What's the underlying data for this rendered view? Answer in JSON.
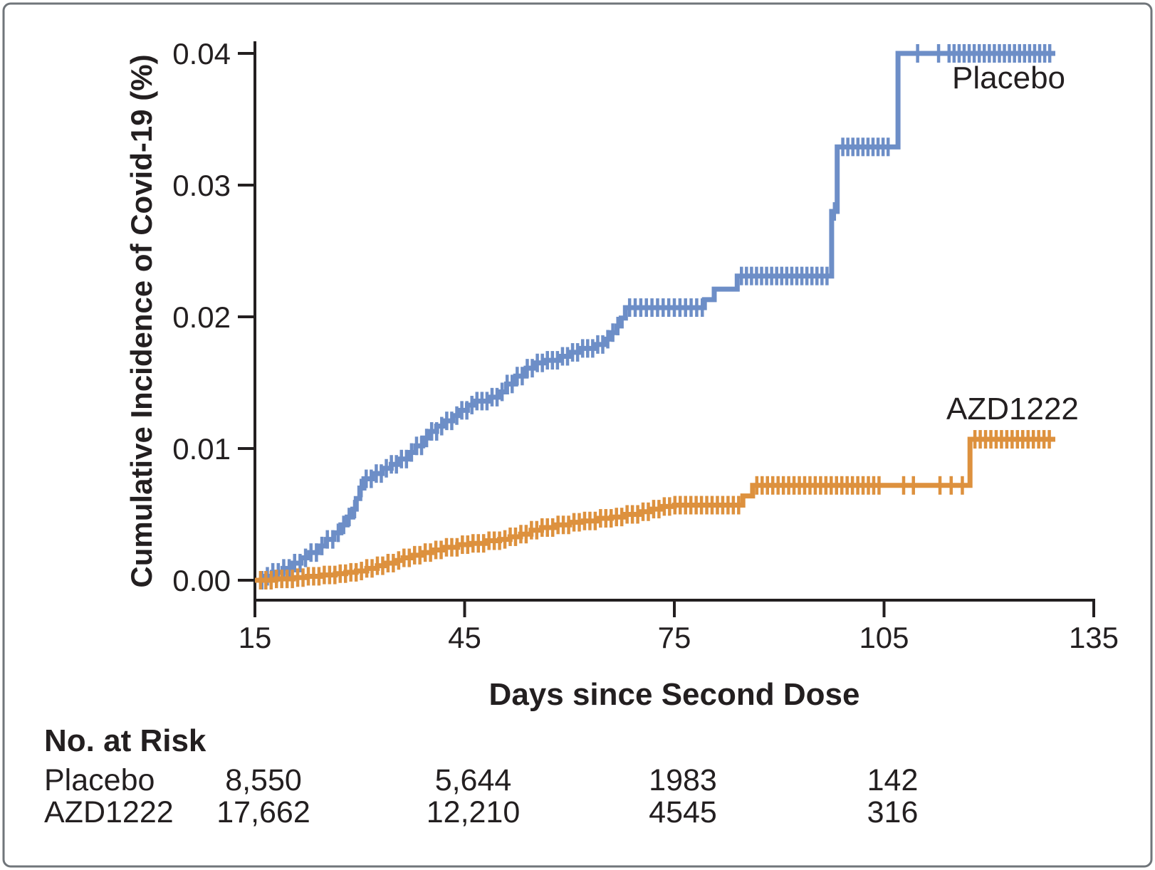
{
  "figure": {
    "background": "#ffffff",
    "border_color": "#70757a",
    "text_color": "#231f20",
    "axis_color": "#231f20"
  },
  "risk_table": {
    "title": "No. at Risk",
    "column_days": [
      15,
      45,
      75,
      105
    ],
    "rows": [
      {
        "label": "Placebo",
        "values": [
          "8,550",
          "5,644",
          "1983",
          "142"
        ]
      },
      {
        "label": "AZD1222",
        "values": [
          "17,662",
          "12,210",
          "4545",
          "316"
        ]
      }
    ]
  },
  "chart_data": {
    "type": "line",
    "subtype": "kaplan-meier-step",
    "title": "",
    "xlabel": "Days since Second Dose",
    "ylabel": "Cumulative Incidence of Covid-19 (%)",
    "grid": false,
    "x_axis": {
      "min": 15,
      "max": 135,
      "ticks": [
        15,
        45,
        75,
        105,
        135
      ],
      "tick_labels": [
        "15",
        "45",
        "75",
        "105",
        "135"
      ]
    },
    "y_axis": {
      "min": 0,
      "max": 0.04,
      "ticks": [
        0,
        0.01,
        0.02,
        0.03,
        0.04
      ],
      "tick_labels": [
        "0.00",
        "0.01",
        "0.02",
        "0.03",
        "0.04"
      ]
    },
    "legend_position": "on-curve-labels",
    "series": [
      {
        "name": "Placebo",
        "color": "#6d8ec7",
        "end_day": 129.5,
        "points": [
          [
            15,
            0
          ],
          [
            16.3,
            0.0003
          ],
          [
            17.5,
            0.0006
          ],
          [
            19,
            0.0009
          ],
          [
            20.3,
            0.0013
          ],
          [
            21.6,
            0.0017
          ],
          [
            22.8,
            0.0021
          ],
          [
            24,
            0.0026
          ],
          [
            25.2,
            0.0031
          ],
          [
            26.3,
            0.0036
          ],
          [
            27.3,
            0.0042
          ],
          [
            28.2,
            0.0048
          ],
          [
            29,
            0.0054
          ],
          [
            29.5,
            0.0062
          ],
          [
            30,
            0.007
          ],
          [
            30.6,
            0.0077
          ],
          [
            31.8,
            0.0081
          ],
          [
            33.2,
            0.0085
          ],
          [
            34.5,
            0.0088
          ],
          [
            35.8,
            0.0092
          ],
          [
            37,
            0.0097
          ],
          [
            38,
            0.0102
          ],
          [
            39,
            0.0108
          ],
          [
            40,
            0.0113
          ],
          [
            41,
            0.0117
          ],
          [
            42.2,
            0.0121
          ],
          [
            43.3,
            0.0125
          ],
          [
            44.4,
            0.0129
          ],
          [
            45.4,
            0.0133
          ],
          [
            46.6,
            0.0136
          ],
          [
            48.5,
            0.0139
          ],
          [
            49.8,
            0.0143
          ],
          [
            51,
            0.0149
          ],
          [
            52.3,
            0.0155
          ],
          [
            53.8,
            0.0161
          ],
          [
            55.2,
            0.0165
          ],
          [
            56.5,
            0.0167
          ],
          [
            58.5,
            0.017
          ],
          [
            60,
            0.0173
          ],
          [
            61.5,
            0.0176
          ],
          [
            63.5,
            0.0179
          ],
          [
            65,
            0.0183
          ],
          [
            66,
            0.0188
          ],
          [
            66.8,
            0.0193
          ],
          [
            67.4,
            0.0199
          ],
          [
            68,
            0.0207
          ],
          [
            79.3,
            0.0213
          ],
          [
            80.7,
            0.0221
          ],
          [
            84,
            0.0231
          ],
          [
            97.5,
            0.028
          ],
          [
            98.3,
            0.0329
          ],
          [
            107,
            0.04
          ]
        ],
        "censor_tick_ranges": [
          [
            16,
            29.3,
            0.78
          ],
          [
            30.2,
            67,
            0.72
          ],
          [
            68.6,
            79,
            0.8
          ],
          [
            84.6,
            97.2,
            0.72
          ],
          [
            97.9,
            97.9,
            1
          ],
          [
            99.1,
            105.9,
            0.72
          ],
          [
            109.8,
            109.8,
            1
          ],
          [
            112.8,
            112.8,
            1
          ],
          [
            114.3,
            129.3,
            0.72
          ]
        ]
      },
      {
        "name": "AZD1222",
        "color": "#dd913e",
        "end_day": 129.5,
        "points": [
          [
            15,
            0
          ],
          [
            18,
            0.0001
          ],
          [
            20.5,
            0.0002
          ],
          [
            22.5,
            0.0003
          ],
          [
            24.5,
            0.0004
          ],
          [
            26.5,
            0.0005
          ],
          [
            28,
            0.0006
          ],
          [
            29.5,
            0.0007
          ],
          [
            31,
            0.0009
          ],
          [
            32.5,
            0.0011
          ],
          [
            33.8,
            0.0013
          ],
          [
            35,
            0.0015
          ],
          [
            36.2,
            0.0017
          ],
          [
            37.5,
            0.0019
          ],
          [
            39,
            0.0021
          ],
          [
            40.3,
            0.0023
          ],
          [
            42,
            0.0025
          ],
          [
            44,
            0.0027
          ],
          [
            46,
            0.0028
          ],
          [
            48,
            0.003
          ],
          [
            50,
            0.0031
          ],
          [
            51.5,
            0.0033
          ],
          [
            53,
            0.0035
          ],
          [
            54.5,
            0.0038
          ],
          [
            56,
            0.004
          ],
          [
            58,
            0.0042
          ],
          [
            60,
            0.0044
          ],
          [
            62,
            0.0045
          ],
          [
            64,
            0.0047
          ],
          [
            66,
            0.0048
          ],
          [
            68,
            0.005
          ],
          [
            70,
            0.0052
          ],
          [
            71.5,
            0.0054
          ],
          [
            73,
            0.0056
          ],
          [
            75,
            0.0057
          ],
          [
            84.8,
            0.0064
          ],
          [
            86.2,
            0.0072
          ],
          [
            117.3,
            0.0107
          ]
        ],
        "censor_tick_ranges": [
          [
            15.8,
            84.2,
            0.76
          ],
          [
            86.8,
            104.8,
            0.76
          ],
          [
            107.8,
            109.2,
            1.4
          ],
          [
            113,
            116.4,
            1.6
          ],
          [
            118,
            129.3,
            0.76
          ]
        ]
      }
    ]
  }
}
